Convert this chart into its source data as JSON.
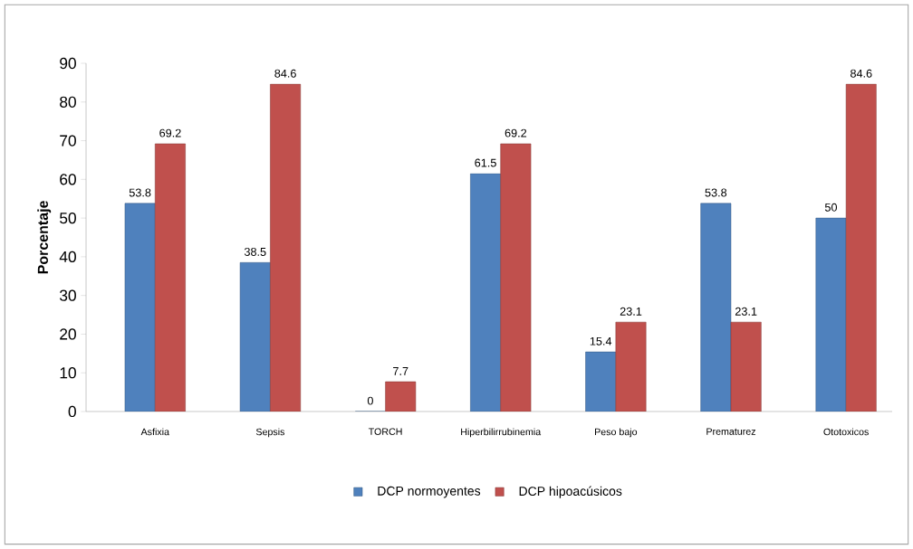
{
  "chart_data": {
    "type": "bar",
    "ylabel": "Porcentaje",
    "categories": [
      "Asfixia",
      "Sepsis",
      "TORCH",
      "Hiperbilirrubinemia",
      "Peso bajo",
      "Prematurez",
      "Ototoxicos"
    ],
    "series": [
      {
        "name": "DCP normoyentes",
        "color": "#4f81bd",
        "values": [
          53.8,
          38.5,
          0,
          61.5,
          15.4,
          53.8,
          50
        ]
      },
      {
        "name": "DCP hipoacúsicos",
        "color": "#c0504d",
        "values": [
          69.2,
          84.6,
          7.7,
          69.2,
          23.1,
          23.1,
          84.6
        ]
      }
    ],
    "ylim": [
      0,
      90
    ],
    "yticks": [
      0,
      10,
      20,
      30,
      40,
      50,
      60,
      70,
      80,
      90
    ],
    "data_labels": true,
    "grid": false,
    "legend": "bottom"
  }
}
